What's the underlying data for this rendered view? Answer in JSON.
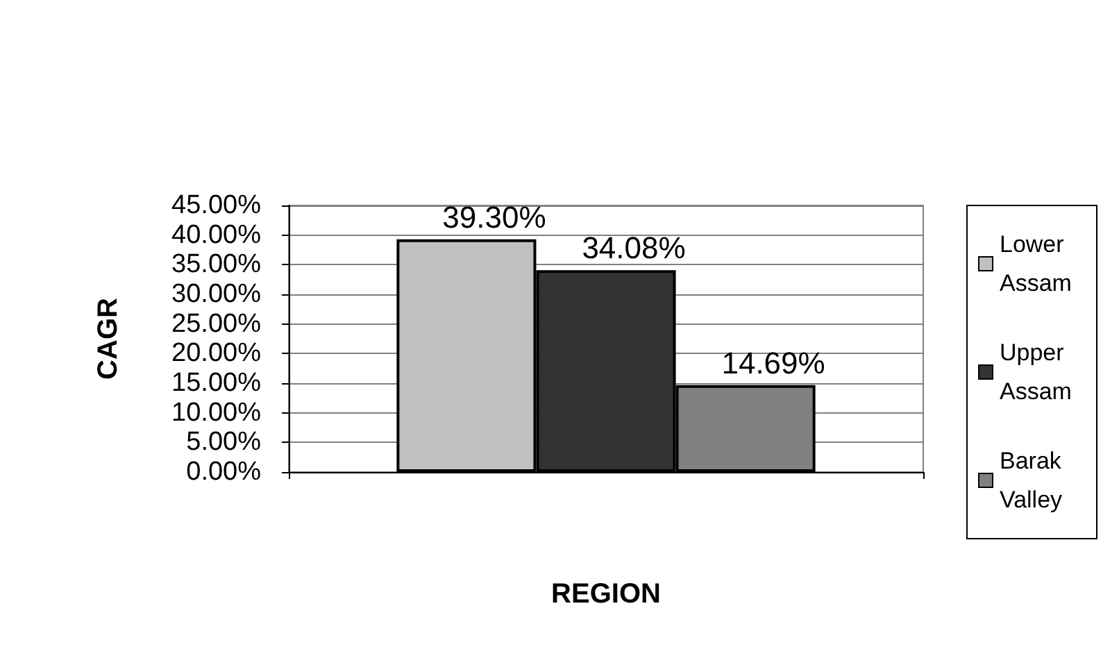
{
  "chart_data": {
    "type": "bar",
    "xlabel": "REGION",
    "ylabel": "CAGR",
    "categories": [
      null
    ],
    "series": [
      {
        "name": "Lower Assam",
        "color": "#c0c0c0",
        "values": [
          39.3
        ],
        "value_labels": [
          "39.30%"
        ]
      },
      {
        "name": "Upper Assam",
        "color": "#333333",
        "values": [
          34.08
        ],
        "value_labels": [
          "34.08%"
        ]
      },
      {
        "name": "Barak Valley",
        "color": "#808080",
        "values": [
          14.69
        ],
        "value_labels": [
          "14.69%"
        ]
      }
    ],
    "ylim": [
      0,
      45
    ],
    "yticks": [
      {
        "value": 0,
        "label": "0.00%"
      },
      {
        "value": 5,
        "label": "5.00%"
      },
      {
        "value": 10,
        "label": "10.00%"
      },
      {
        "value": 15,
        "label": "15.00%"
      },
      {
        "value": 20,
        "label": "20.00%"
      },
      {
        "value": 25,
        "label": "25.00%"
      },
      {
        "value": 30,
        "label": "30.00%"
      },
      {
        "value": 35,
        "label": "35.00%"
      },
      {
        "value": 40,
        "label": "40.00%"
      },
      {
        "value": 45,
        "label": "45.00%"
      }
    ],
    "grid": "y",
    "legend": "right"
  }
}
